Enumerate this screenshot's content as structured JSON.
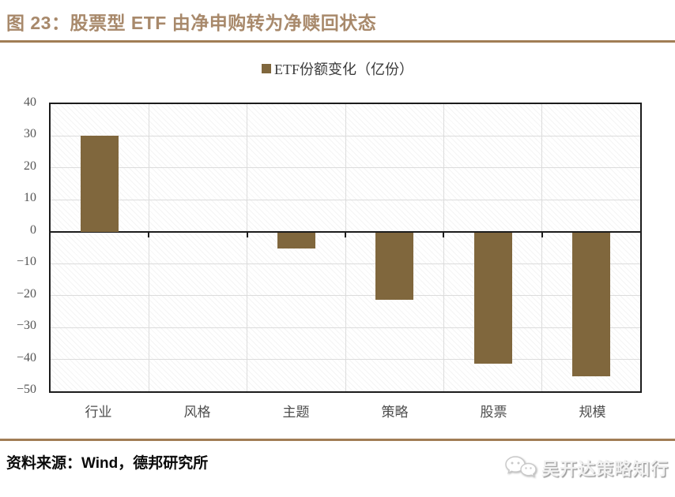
{
  "header": {
    "title": "图 23：股票型 ETF 由净申购转为净赎回状态"
  },
  "legend": {
    "label": "ETF份额变化（亿份）"
  },
  "chart_data": {
    "type": "bar",
    "title": "",
    "legend": [
      "ETF份额变化（亿份）"
    ],
    "legend_position": "top-center",
    "categories": [
      "行业",
      "风格",
      "主题",
      "策略",
      "股票",
      "规模"
    ],
    "series": [
      {
        "name": "ETF份额变化（亿份）",
        "values": [
          30,
          0,
          -5,
          -21,
          -41,
          -45
        ]
      }
    ],
    "values": [
      30,
      0,
      -5,
      -21,
      -41,
      -45
    ],
    "ylim": [
      -50,
      40
    ],
    "ytick_interval": 10,
    "yticks": [
      "40",
      "30",
      "20",
      "10",
      "0",
      "−10",
      "−20",
      "−30",
      "−40",
      "−50"
    ],
    "grid": true,
    "hatch_background": true,
    "bar_color": "#80673d"
  },
  "footer": {
    "source": "资料来源：Wind，德邦研究所",
    "watermark_label": "吴开达策略知行",
    "watermark_icon": "wechat-chat-bubbles"
  },
  "colors": {
    "title": "#a8896b",
    "rule": "#a17d55",
    "bar": "#80673d",
    "axis_text": "#555555",
    "grid": "#dcdcdc",
    "plot_border": "#1c1c1c"
  }
}
